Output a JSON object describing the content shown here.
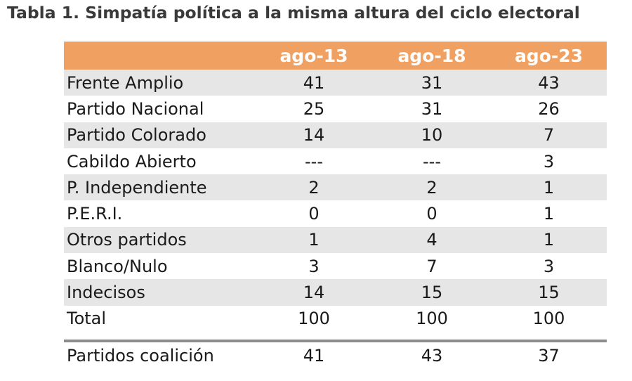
{
  "title": "Tabla 1. Simpatía política a la misma altura del ciclo electoral",
  "header": [
    "",
    "ago-13",
    "ago-18",
    "ago-23"
  ],
  "rows": [
    {
      "label": "Frente Amplio",
      "values": [
        "41",
        "31",
        "43"
      ]
    },
    {
      "label": "Partido Nacional",
      "values": [
        "25",
        "31",
        "26"
      ]
    },
    {
      "label": "Partido Colorado",
      "values": [
        "14",
        "10",
        "7"
      ]
    },
    {
      "label": "Cabildo Abierto",
      "values": [
        "---",
        "---",
        "3"
      ]
    },
    {
      "label": "P. Independiente",
      "values": [
        "2",
        "2",
        "1"
      ]
    },
    {
      "label": "P.E.R.I.",
      "values": [
        "0",
        "0",
        "1"
      ]
    },
    {
      "label": "Otros partidos",
      "values": [
        "1",
        "4",
        "1"
      ]
    },
    {
      "label": "Blanco/Nulo",
      "values": [
        "3",
        "7",
        "3"
      ]
    },
    {
      "label": "Indecisos",
      "values": [
        "14",
        "15",
        "15"
      ]
    },
    {
      "label": "Total",
      "values": [
        "100",
        "100",
        "100"
      ]
    }
  ],
  "footer_row": {
    "label": "Partidos coalición",
    "values": [
      "41",
      "43",
      "37"
    ]
  },
  "colors": {
    "header_bg": "#f0a060",
    "shade_bg": "#e6e6e6",
    "separator": "#8c8c8c"
  }
}
